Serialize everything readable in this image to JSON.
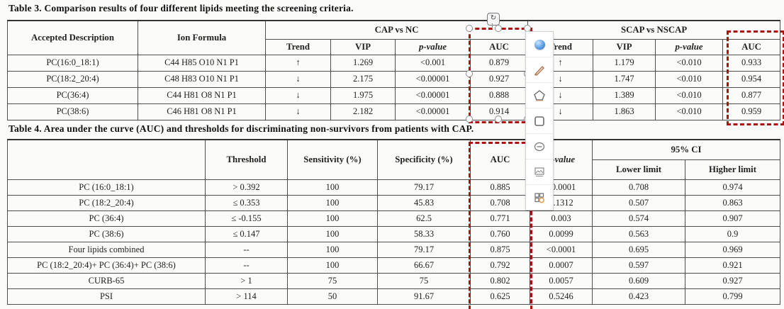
{
  "table3": {
    "title": "Table 3.  Comparison results of four different lipids meeting the screening criteria.",
    "headers": {
      "accepted_description": "Accepted Description",
      "ion_formula": "Ion Formula",
      "group_cap": "CAP vs NC",
      "group_scap": "SCAP vs NSCAP",
      "trend": "Trend",
      "vip": "VIP",
      "p_value": "p-value",
      "auc": "AUC"
    },
    "rows": [
      [
        "PC(16:0_18:1)",
        "C44 H85 O10 N1 P1",
        "↑",
        "1.269",
        "<0.001",
        "0.879",
        "↑",
        "1.179",
        "<0.010",
        "0.933"
      ],
      [
        "PC(18:2_20:4)",
        "C48 H83 O10 N1 P1",
        "↓",
        "2.175",
        "<0.00001",
        "0.927",
        "↓",
        "1.747",
        "<0.010",
        "0.954"
      ],
      [
        "PC(36:4)",
        "C44 H81 O8 N1 P1",
        "↓",
        "1.975",
        "<0.00001",
        "0.888",
        "↓",
        "1.389",
        "<0.010",
        "0.877"
      ],
      [
        "PC(38:6)",
        "C46 H81 O8 N1 P1",
        "↓",
        "2.182",
        "<0.00001",
        "0.914",
        "↓",
        "1.863",
        "<0.010",
        "0.959"
      ]
    ]
  },
  "table4": {
    "title": "Table 4.  Area under the curve (AUC) and thresholds for discriminating non-survivors from patients with CAP.",
    "headers": {
      "threshold": "Threshold",
      "sensitivity": "Sensitivity (%)",
      "specificity": "Specificity (%)",
      "auc": "AUC",
      "p_value": "p-value",
      "ci": "95% CI",
      "lower": "Lower limit",
      "higher": "Higher limit"
    },
    "rows": [
      [
        "PC (16:0_18:1)",
        "> 0.392",
        "100",
        "79.17",
        "0.885",
        "<0.0001",
        "0.708",
        "0.974"
      ],
      [
        "PC (18:2_20:4)",
        "≤ 0.353",
        "100",
        "45.83",
        "0.708",
        "0.1312",
        "0.507",
        "0.863"
      ],
      [
        "PC (36:4)",
        "≤ -0.155",
        "100",
        "62.5",
        "0.771",
        "0.003",
        "0.574",
        "0.907"
      ],
      [
        "PC (38:6)",
        "≤ 0.147",
        "100",
        "58.33",
        "0.760",
        "0.0099",
        "0.563",
        "0.9"
      ],
      [
        "Four lipids combined",
        "--",
        "100",
        "79.17",
        "0.875",
        "<0.0001",
        "0.695",
        "0.969"
      ],
      [
        "PC (18:2_20:4)+ PC (36:4)+ PC (38:6)",
        "--",
        "100",
        "66.67",
        "0.792",
        "0.0007",
        "0.597",
        "0.921"
      ],
      [
        "CURB-65",
        "> 1",
        "75",
        "75",
        "0.802",
        "0.0057",
        "0.609",
        "0.927"
      ],
      [
        "PSI",
        "> 114",
        "50",
        "91.67",
        "0.625",
        "0.5246",
        "0.423",
        "0.799"
      ]
    ]
  },
  "annotations": {
    "highlight_color": "#ab1313",
    "rotate_glyph": "↻",
    "boxes": [
      "table3-cap-auc-column",
      "table3-scap-auc-column",
      "table4-auc-column"
    ]
  },
  "toolbar": {
    "tools": [
      {
        "icon": "blue-ball-icon"
      },
      {
        "icon": "pencil-icon"
      },
      {
        "icon": "pentagon-icon"
      },
      {
        "icon": "rectangle-icon"
      },
      {
        "icon": "ellipse-icon"
      },
      {
        "icon": "image-icon"
      },
      {
        "icon": "mosaic-icon"
      }
    ]
  }
}
